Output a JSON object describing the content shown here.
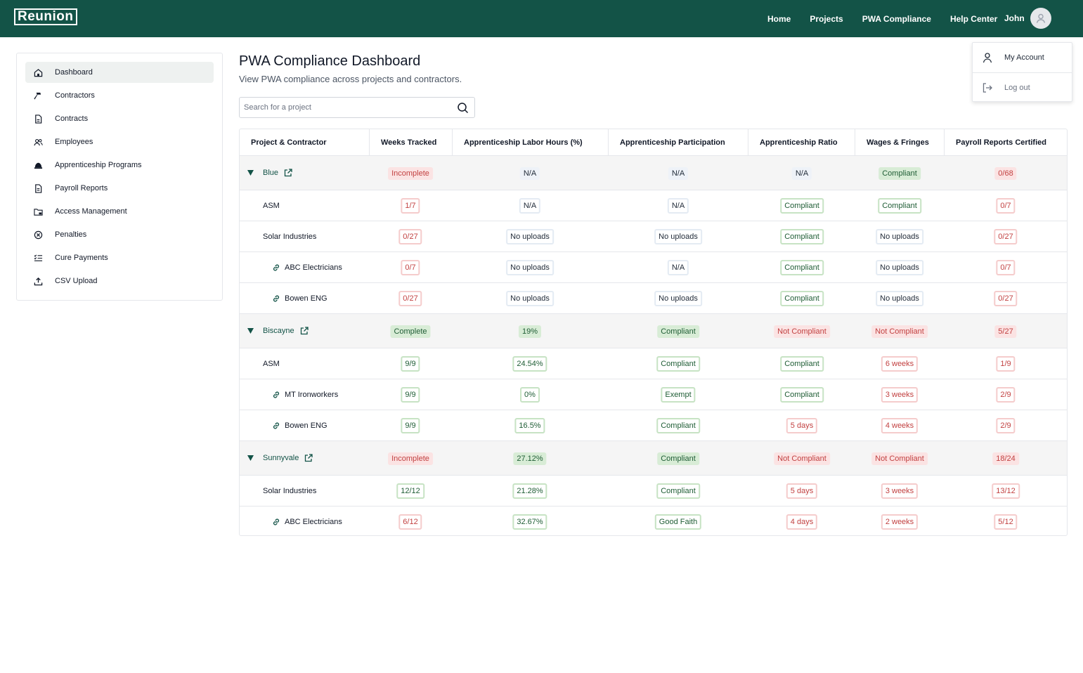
{
  "app": {
    "logo": "Reunion"
  },
  "nav": {
    "items": [
      "Home",
      "Projects",
      "PWA Compliance",
      "Help Center"
    ],
    "user": "John"
  },
  "user_menu": {
    "items": [
      "My Account",
      "Log out"
    ]
  },
  "sidebar": {
    "items": [
      "Dashboard",
      "Contractors",
      "Contracts",
      "Employees",
      "Apprenticeship Programs",
      "Payroll Reports",
      "Access Management",
      "Penalties",
      "Cure Payments",
      "CSV Upload"
    ],
    "active": "Dashboard"
  },
  "page": {
    "title": "PWA Compliance Dashboard",
    "subtitle": "View PWA compliance across projects and contractors."
  },
  "search": {
    "placeholder": "Search for a project"
  },
  "table": {
    "headers": [
      "Project & Contractor",
      "Weeks Tracked",
      "Apprenticeship Labor Hours (%)",
      "Apprenticeship Participation",
      "Apprenticeship Ratio",
      "Wages & Fringes",
      "Payroll Reports Certified"
    ],
    "rows": [
      {
        "type": "project",
        "name": "Blue",
        "cells": [
          [
            "Incomplete",
            "red"
          ],
          [
            "N/A",
            "blue"
          ],
          [
            "N/A",
            "blue"
          ],
          [
            "N/A",
            "blue"
          ],
          [
            "Compliant",
            "green"
          ],
          [
            "0/68",
            "red"
          ]
        ]
      },
      {
        "type": "contractor",
        "name": "ASM",
        "cells": [
          [
            "1/7",
            "red"
          ],
          [
            "N/A",
            "blue"
          ],
          [
            "N/A",
            "blue"
          ],
          [
            "Compliant",
            "green"
          ],
          [
            "Compliant",
            "green"
          ],
          [
            "0/7",
            "red"
          ]
        ]
      },
      {
        "type": "contractor",
        "name": "Solar Industries",
        "cells": [
          [
            "0/27",
            "red"
          ],
          [
            "No uploads",
            "blue"
          ],
          [
            "No uploads",
            "blue"
          ],
          [
            "Compliant",
            "green"
          ],
          [
            "No uploads",
            "blue"
          ],
          [
            "0/27",
            "red"
          ]
        ]
      },
      {
        "type": "sub",
        "name": "ABC Electricians",
        "cells": [
          [
            "0/7",
            "red"
          ],
          [
            "No uploads",
            "blue"
          ],
          [
            "N/A",
            "blue"
          ],
          [
            "Compliant",
            "green"
          ],
          [
            "No uploads",
            "blue"
          ],
          [
            "0/7",
            "red"
          ]
        ]
      },
      {
        "type": "sub",
        "name": "Bowen ENG",
        "cells": [
          [
            "0/27",
            "red"
          ],
          [
            "No uploads",
            "blue"
          ],
          [
            "No uploads",
            "blue"
          ],
          [
            "Compliant",
            "green"
          ],
          [
            "No uploads",
            "blue"
          ],
          [
            "0/27",
            "red"
          ]
        ]
      },
      {
        "type": "project",
        "name": "Biscayne",
        "cells": [
          [
            "Complete",
            "green"
          ],
          [
            "19%",
            "green"
          ],
          [
            "Compliant",
            "green"
          ],
          [
            "Not Compliant",
            "red"
          ],
          [
            "Not Compliant",
            "red"
          ],
          [
            "5/27",
            "red"
          ]
        ]
      },
      {
        "type": "contractor",
        "name": "ASM",
        "cells": [
          [
            "9/9",
            "green"
          ],
          [
            "24.54%",
            "green"
          ],
          [
            "Compliant",
            "green"
          ],
          [
            "Compliant",
            "green"
          ],
          [
            "6 weeks",
            "red"
          ],
          [
            "1/9",
            "red"
          ]
        ]
      },
      {
        "type": "sub",
        "name": "MT Ironworkers",
        "cells": [
          [
            "9/9",
            "green"
          ],
          [
            "0%",
            "green"
          ],
          [
            "Exempt",
            "green"
          ],
          [
            "Compliant",
            "green"
          ],
          [
            "3 weeks",
            "red"
          ],
          [
            "2/9",
            "red"
          ]
        ]
      },
      {
        "type": "sub",
        "name": "Bowen ENG",
        "cells": [
          [
            "9/9",
            "green"
          ],
          [
            "16.5%",
            "green"
          ],
          [
            "Compliant",
            "green"
          ],
          [
            "5 days",
            "red"
          ],
          [
            "4 weeks",
            "red"
          ],
          [
            "2/9",
            "red"
          ]
        ]
      },
      {
        "type": "project",
        "name": "Sunnyvale",
        "cells": [
          [
            "Incomplete",
            "red"
          ],
          [
            "27.12%",
            "green"
          ],
          [
            "Compliant",
            "green"
          ],
          [
            "Not Compliant",
            "red"
          ],
          [
            "Not Compliant",
            "red"
          ],
          [
            "18/24",
            "red"
          ]
        ]
      },
      {
        "type": "contractor",
        "name": "Solar Industries",
        "cells": [
          [
            "12/12",
            "green"
          ],
          [
            "21.28%",
            "green"
          ],
          [
            "Compliant",
            "green"
          ],
          [
            "5 days",
            "red"
          ],
          [
            "3 weeks",
            "red"
          ],
          [
            "13/12",
            "red"
          ]
        ]
      },
      {
        "type": "sub",
        "name": "ABC Electricians",
        "cells": [
          [
            "6/12",
            "red"
          ],
          [
            "32.67%",
            "green"
          ],
          [
            "Good Faith",
            "green"
          ],
          [
            "4 days",
            "red"
          ],
          [
            "2 weeks",
            "red"
          ],
          [
            "5/12",
            "red"
          ]
        ]
      }
    ]
  },
  "colors": {
    "brand": "#135347",
    "danger": "#c24141",
    "success": "#1f5d35"
  }
}
